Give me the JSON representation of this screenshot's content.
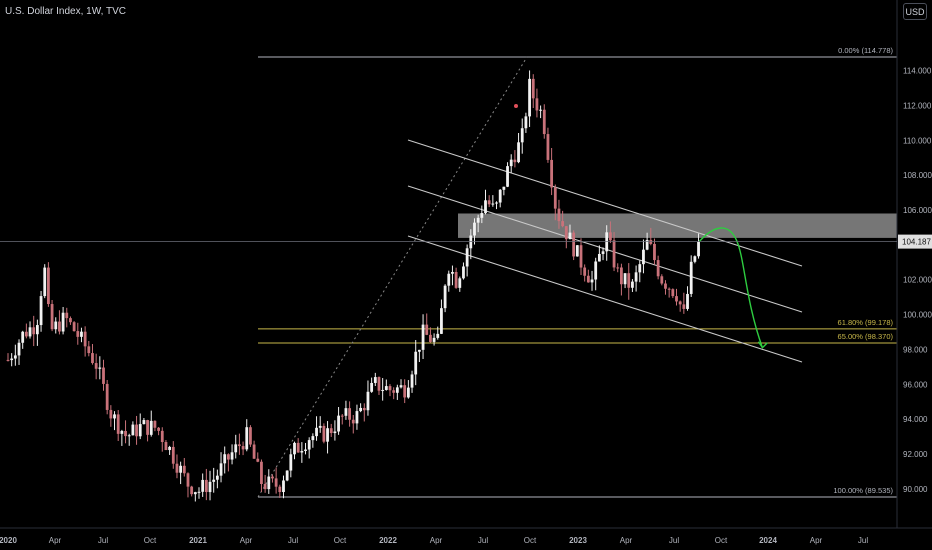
{
  "header": {
    "title": "U.S. Dollar Index, 1W, TVC",
    "currency": "USD"
  },
  "colors": {
    "background": "#000000",
    "up_candle": "#f2f2f2",
    "down_candle": "#c9727a",
    "fib_white": "#b2b5be",
    "fib_yellow": "#c8b84a",
    "channel": "#c9c9c9",
    "zone": "#9e9e9e",
    "forecast": "#2ecc40",
    "price_tag_bg": "#e0e0e0"
  },
  "chart_data": {
    "type": "candlestick",
    "x_ticks": [
      "2020",
      "Apr",
      "Jul",
      "Oct",
      "2021",
      "Apr",
      "Jul",
      "Oct",
      "2022",
      "Apr",
      "Jul",
      "Oct",
      "2023",
      "Apr",
      "Jul",
      "Oct",
      "2024",
      "Apr",
      "Jul"
    ],
    "y_ticks": [
      "90.000",
      "92.000",
      "94.000",
      "96.000",
      "98.000",
      "100.000",
      "102.000",
      "104.000",
      "106.000",
      "108.000",
      "110.000",
      "112.000",
      "114.000"
    ],
    "ylim": [
      89.0,
      116.5
    ],
    "last_price": "104.187",
    "weekly_closes": [
      [
        2020.0,
        97.4
      ],
      [
        2020.08,
        98.9
      ],
      [
        2020.15,
        99.5
      ],
      [
        2020.19,
        102.8
      ],
      [
        2020.22,
        99.0
      ],
      [
        2020.3,
        99.8
      ],
      [
        2020.38,
        98.6
      ],
      [
        2020.46,
        97.2
      ],
      [
        2020.54,
        94.3
      ],
      [
        2020.62,
        93.0
      ],
      [
        2020.7,
        93.6
      ],
      [
        2020.78,
        93.5
      ],
      [
        2020.85,
        92.2
      ],
      [
        2020.94,
        90.3
      ],
      [
        2021.0,
        89.9
      ],
      [
        2021.08,
        90.6
      ],
      [
        2021.17,
        92.0
      ],
      [
        2021.25,
        93.0
      ],
      [
        2021.33,
        90.3
      ],
      [
        2021.42,
        90.2
      ],
      [
        2021.5,
        92.2
      ],
      [
        2021.58,
        93.0
      ],
      [
        2021.67,
        93.2
      ],
      [
        2021.75,
        94.1
      ],
      [
        2021.83,
        94.2
      ],
      [
        2021.92,
        96.0
      ],
      [
        2022.0,
        95.7
      ],
      [
        2022.08,
        95.8
      ],
      [
        2022.17,
        98.9
      ],
      [
        2022.25,
        98.4
      ],
      [
        2022.3,
        103.0
      ],
      [
        2022.35,
        101.9
      ],
      [
        2022.42,
        104.5
      ],
      [
        2022.5,
        106.6
      ],
      [
        2022.55,
        105.9
      ],
      [
        2022.63,
        108.8
      ],
      [
        2022.69,
        110.0
      ],
      [
        2022.73,
        113.1
      ],
      [
        2022.75,
        112.5
      ],
      [
        2022.8,
        111.4
      ],
      [
        2022.87,
        106.0
      ],
      [
        2022.92,
        104.8
      ],
      [
        2023.0,
        103.0
      ],
      [
        2023.06,
        101.9
      ],
      [
        2023.13,
        104.6
      ],
      [
        2023.2,
        102.1
      ],
      [
        2023.27,
        101.6
      ],
      [
        2023.35,
        104.2
      ],
      [
        2023.42,
        102.1
      ],
      [
        2023.5,
        101.2
      ],
      [
        2023.54,
        99.9
      ],
      [
        2023.58,
        102.8
      ],
      [
        2023.62,
        104.2
      ]
    ],
    "channel": {
      "upper": "descending",
      "middle": "descending",
      "lower": "descending"
    },
    "fib_levels": [
      {
        "label": "0.00% (114.778)",
        "value": 114.778
      },
      {
        "label": "61.80% (99.178)",
        "value": 99.178
      },
      {
        "label": "65.00% (98.370)",
        "value": 98.37
      },
      {
        "label": "100.00% (89.535)",
        "value": 89.535
      }
    ],
    "resistance_zone": [
      104.4,
      105.8
    ],
    "forecast_path": [
      [
        2023.62,
        104.2
      ],
      [
        2023.7,
        104.7
      ],
      [
        2023.82,
        102.5
      ],
      [
        2023.95,
        98.1
      ]
    ],
    "legend": "none",
    "grid": false
  }
}
